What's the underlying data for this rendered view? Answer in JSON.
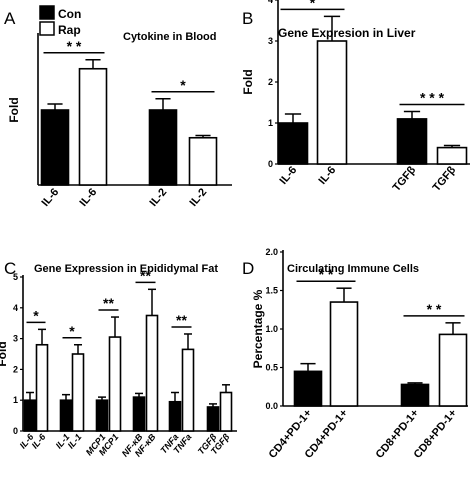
{
  "legend": [
    {
      "label": "Con",
      "color": "#000000"
    },
    {
      "label": "Rap",
      "color": "#ffffff"
    }
  ],
  "chart_data": [
    {
      "panel": "A",
      "type": "bar",
      "title": "Cytokine in Blood",
      "ylabel": "Fold",
      "ylim": [
        0,
        2
      ],
      "yticks": [],
      "categories": [
        "IL-6",
        "IL-6",
        "IL-2",
        "IL-2"
      ],
      "groups": [
        "Con",
        "Rap",
        "Con",
        "Rap"
      ],
      "values": [
        1.0,
        1.55,
        1.0,
        0.63
      ],
      "errors": [
        0.08,
        0.12,
        0.15,
        0.03
      ],
      "significance": [
        {
          "from": 0,
          "to": 1,
          "label": "* *"
        },
        {
          "from": 2,
          "to": 3,
          "label": "*"
        }
      ]
    },
    {
      "panel": "B",
      "type": "bar",
      "title": "Gene Expresion in Liver",
      "ylabel": "Fold",
      "ylim": [
        0,
        4
      ],
      "yticks": [
        "0",
        "1",
        "2",
        "3",
        "4"
      ],
      "categories": [
        "IL-6",
        "IL-6",
        "TGFβ",
        "TGFβ"
      ],
      "groups": [
        "Con",
        "Rap",
        "Con",
        "Rap"
      ],
      "values": [
        1.0,
        3.0,
        1.1,
        0.4
      ],
      "errors": [
        0.22,
        0.6,
        0.18,
        0.05
      ],
      "significance": [
        {
          "from": 0,
          "to": 1,
          "label": "*"
        },
        {
          "from": 2,
          "to": 3,
          "label": "* * *"
        }
      ]
    },
    {
      "panel": "C",
      "type": "bar",
      "title": "Gene Expression in Epididymal Fat",
      "ylabel": "Fold",
      "ylim": [
        0,
        5
      ],
      "yticks": [
        "0",
        "1",
        "2",
        "3",
        "4",
        "5"
      ],
      "categories": [
        "IL-6",
        "IL-6",
        "IL-1",
        "IL-1",
        "MCP1",
        "MCP1",
        "NF-κB",
        "NF-κB",
        "TNFa",
        "TNFa",
        "TGFβ",
        "TGFβ"
      ],
      "groups": [
        "Con",
        "Rap",
        "Con",
        "Rap",
        "Con",
        "Rap",
        "Con",
        "Rap",
        "Con",
        "Rap",
        "Con",
        "Rap"
      ],
      "values": [
        1.0,
        2.8,
        1.0,
        2.5,
        1.0,
        3.05,
        1.1,
        3.75,
        0.95,
        2.65,
        0.78,
        1.25
      ],
      "errors": [
        0.25,
        0.5,
        0.18,
        0.3,
        0.1,
        0.65,
        0.12,
        0.85,
        0.3,
        0.5,
        0.1,
        0.25
      ],
      "significance": [
        {
          "from": 0,
          "to": 1,
          "label": "*"
        },
        {
          "from": 2,
          "to": 3,
          "label": "*"
        },
        {
          "from": 4,
          "to": 5,
          "label": "**"
        },
        {
          "from": 6,
          "to": 7,
          "label": "**"
        },
        {
          "from": 8,
          "to": 9,
          "label": "**"
        }
      ]
    },
    {
      "panel": "D",
      "type": "bar",
      "title": "Circulating Immune Cells",
      "ylabel": "Percentage %",
      "ylim": [
        0,
        2
      ],
      "yticks": [
        "0.0",
        "0.5",
        "1.0",
        "1.5",
        "2.0"
      ],
      "categories": [
        "CD4+PD-1+",
        "CD4+PD-1+",
        "CD8+PD-1+",
        "CD8+PD-1+"
      ],
      "groups": [
        "Con",
        "Rap",
        "Con",
        "Rap"
      ],
      "values": [
        0.45,
        1.35,
        0.28,
        0.93
      ],
      "errors": [
        0.1,
        0.18,
        0.02,
        0.15
      ],
      "significance": [
        {
          "from": 0,
          "to": 1,
          "label": "* *"
        },
        {
          "from": 2,
          "to": 3,
          "label": "* *"
        }
      ]
    }
  ]
}
